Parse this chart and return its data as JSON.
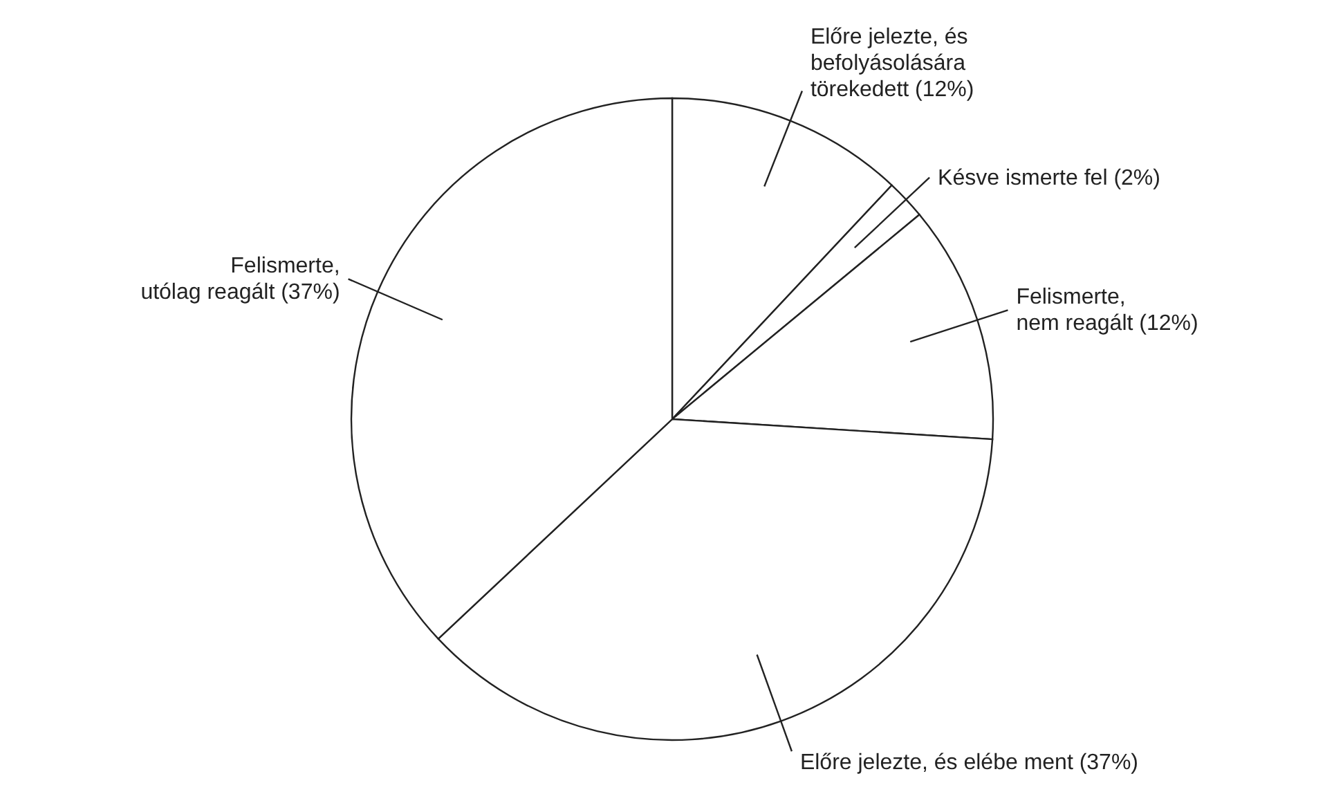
{
  "chart_data": {
    "type": "pie",
    "categories": [
      "Előre jelezte, és befolyásolására törekedett",
      "Késve ismerte fel",
      "Felismerte, nem reagált",
      "Előre jelezte, és elébe ment",
      "Felismerte, utólag reagált"
    ],
    "values": [
      12,
      2,
      12,
      37,
      37
    ],
    "value_labels": [
      "(12%)",
      "(2%)",
      "(12%)",
      "(37%)",
      "(37%)"
    ],
    "colors": [
      "#ffffff",
      "#ffffff",
      "#ffffff",
      "#ffffff",
      "#ffffff"
    ]
  }
}
